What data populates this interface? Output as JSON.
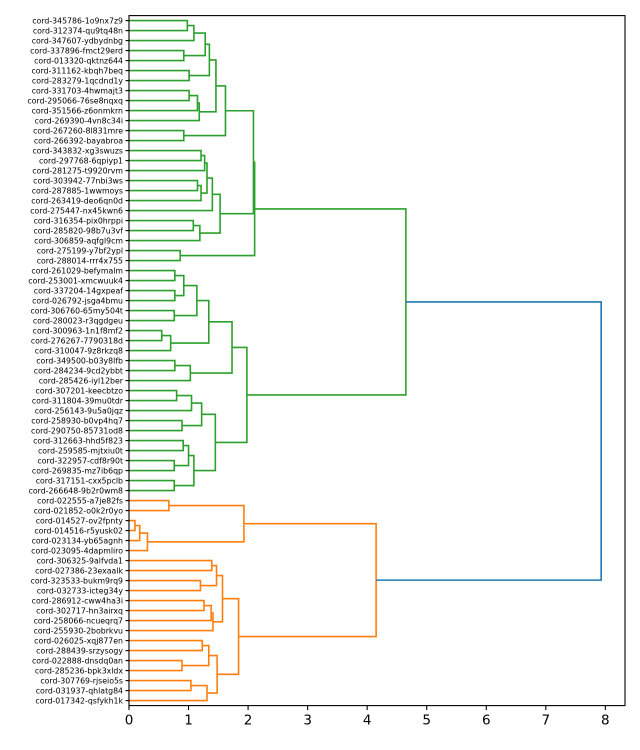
{
  "chart_data": {
    "type": "dendrogram",
    "orientation": "right",
    "title": "",
    "xlabel": "",
    "ylabel": "",
    "xlim": [
      0,
      8.33
    ],
    "x_ticks": [
      "0",
      "1",
      "2",
      "3",
      "4",
      "5",
      "6",
      "7",
      "8"
    ],
    "x_tick_values": [
      0,
      1,
      2,
      3,
      4,
      5,
      6,
      7,
      8
    ],
    "colors": {
      "cluster_1": "#2ca02c",
      "cluster_2": "#ff7f0e",
      "above_threshold": "#1f77b4"
    },
    "leaves": [
      "cord-345786-1o9nx7z9",
      "cord-312374-qu9tq48n",
      "cord-347607-ydbydnbg",
      "cord-337896-fmct29erd",
      "cord-013320-qktnz644",
      "cord-311162-kbqh7beq",
      "cord-283279-1qcdnd1y",
      "cord-331703-4hwmajt3",
      "cord-295066-76se8nqxq",
      "cord-351566-z6onmkrn",
      "cord-269390-4vn8c34i",
      "cord-267260-8l831mre",
      "cord-266392-bayabroa",
      "cord-343832-xg3swuzs",
      "cord-297768-6qpiyp1",
      "cord-281275-t9920rvm",
      "cord-303942-77nbi3ws",
      "cord-287885-1wwmoys",
      "cord-263419-deo6qn0d",
      "cord-275447-nx45kwn6",
      "cord-316354-pix0hrppi",
      "cord-285820-98b7u3vf",
      "cord-306859-aqfgl9cm",
      "cord-275199-y7bf2ypl",
      "cord-288014-rrr4x755",
      "cord-261029-befymalm",
      "cord-253001-xmcwuuk4",
      "cord-337204-14gxpeaf",
      "cord-026792-jsga4bmu",
      "cord-306760-65my504t",
      "cord-280023-r3qgdgeu",
      "cord-300963-1n1f8mf2",
      "cord-276267-7790318d",
      "cord-310047-9z8rkzq8",
      "cord-349500-b03y8lfb",
      "cord-284234-9cd2ybbt",
      "cord-285426-iyl12ber",
      "cord-307201-keecbtzo",
      "cord-311804-39mu0tdr",
      "cord-256143-9u5a0jqz",
      "cord-258930-b0vp4hq7",
      "cord-290750-85731od8",
      "cord-312663-hhd5f823",
      "cord-259585-mjtxiu0t",
      "cord-322957-cdf8r90t",
      "cord-269835-mz7ib6qp",
      "cord-317151-cxx5pclb",
      "cord-266648-9b2r0wm8",
      "cord-022555-a7je82fs",
      "cord-021852-o0k2r0yo",
      "cord-014527-ov2fpnty",
      "cord-014516-r5yusk02",
      "cord-023134-yb65agnh",
      "cord-023095-4dapmliro",
      "cord-306325-9alfvda1",
      "cord-027386-23exaalk",
      "cord-323533-bukm9rq9",
      "cord-032733-icteg34y",
      "cord-286912-cww4ha3i",
      "cord-302717-hn3airxq",
      "cord-258066-ncueqrq7",
      "cord-255930-2bobrkvu",
      "cord-026025-xqj877en",
      "cord-288439-srzysogy",
      "cord-022888-dnsdq0an",
      "cord-285236-bpk3xldx",
      "cord-307769-rjseio5s",
      "cord-031937-qhlatg84",
      "cord-017342-qsfykh1k"
    ],
    "linkage_tree": [
      7.93,
      [
        4.65,
        [
          2.11,
          [
            2.09,
            [
              1.62,
              [
                1.46,
                [
                  1.35,
                  [
                    1.28,
                    [
                      1.09,
                      [
                        0.98,
                        0,
                        1
                      ],
                      2
                    ],
                    [
                      0.92,
                      3,
                      4
                    ]
                  ],
                  [
                    1.01,
                    5,
                    6
                  ]
                ],
                [
                  1.18,
                  [
                    1.15,
                    [
                      1.01,
                      7,
                      8
                    ],
                    9
                  ],
                  10
                ]
              ],
              [
                0.92,
                11,
                12
              ]
            ],
            [
              1.53,
              [
                1.4,
                [
                  1.31,
                  [
                    1.27,
                    [
                      1.21,
                      13,
                      14
                    ],
                    15
                  ],
                  [
                    1.21,
                    [
                      1.15,
                      16,
                      17
                    ],
                    18
                  ]
                ],
                19
              ],
              [
                1.19,
                [
                  1.08,
                  20,
                  21
                ],
                22
              ]
            ]
          ],
          [
            0.86,
            23,
            24
          ]
        ],
        [
          1.98,
          [
            1.73,
            [
              1.34,
              [
                1.14,
                [
                  0.92,
                  [
                    0.77,
                    25,
                    26
                  ],
                  [
                    0.77,
                    27,
                    28
                  ]
                ],
                [
                  0.76,
                  29,
                  30
                ]
              ],
              [
                0.7,
                [
                  0.55,
                  31,
                  32
                ],
                33
              ]
            ],
            [
              1.03,
              [
                0.77,
                34,
                35
              ],
              36
            ]
          ],
          [
            1.45,
            [
              1.22,
              [
                1.05,
                [
                  0.8,
                  37,
                  38
                ],
                39
              ],
              [
                0.89,
                40,
                41
              ]
            ],
            [
              1.09,
              [
                1.0,
                [
                  0.91,
                  42,
                  43
                ],
                [
                  0.76,
                  44,
                  45
                ]
              ],
              [
                0.76,
                46,
                47
              ]
            ]
          ]
        ]
      ],
      [
        4.15,
        [
          1.93,
          [
            0.67,
            48,
            49
          ],
          [
            0.31,
            [
              0.18,
              [
                0.1,
                50,
                51
              ],
              52
            ],
            53
          ]
        ],
        [
          1.84,
          [
            1.57,
            [
              1.47,
              [
                1.39,
                54,
                55
              ],
              [
                1.2,
                56,
                57
              ]
            ],
            [
              1.41,
              [
                1.38,
                [
                  1.26,
                  58,
                  59
                ],
                60
              ],
              61
            ]
          ],
          [
            1.48,
            [
              1.34,
              [
                1.23,
                62,
                63
              ],
              [
                0.89,
                64,
                65
              ]
            ],
            [
              1.31,
              [
                1.04,
                66,
                67
              ],
              68
            ]
          ]
        ]
      ]
    ]
  }
}
